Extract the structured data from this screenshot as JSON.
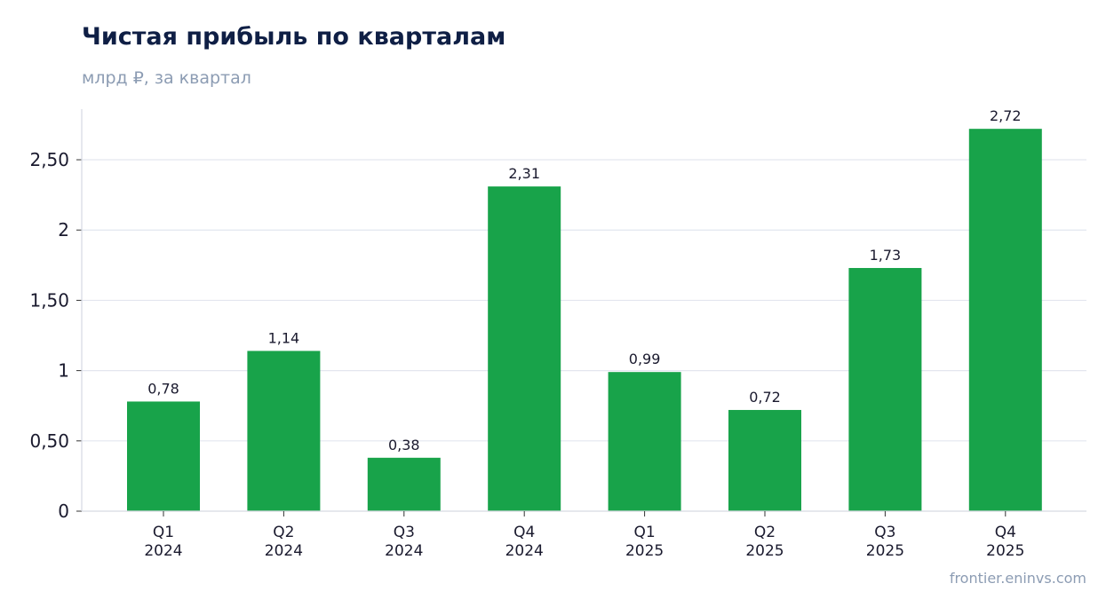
{
  "chart_data": {
    "type": "bar",
    "title": "Чистая прибыль по кварталам",
    "subtitle": "млрд ₽, за квартал",
    "categories": [
      [
        "Q1",
        "2024"
      ],
      [
        "Q2",
        "2024"
      ],
      [
        "Q3",
        "2024"
      ],
      [
        "Q4",
        "2024"
      ],
      [
        "Q1",
        "2025"
      ],
      [
        "Q2",
        "2025"
      ],
      [
        "Q3",
        "2025"
      ],
      [
        "Q4",
        "2025"
      ]
    ],
    "values": [
      0.78,
      1.14,
      0.38,
      2.31,
      0.99,
      0.72,
      1.73,
      2.72
    ],
    "value_labels": [
      "0,78",
      "1,14",
      "0,38",
      "2,31",
      "0,99",
      "0,72",
      "1,73",
      "2,72"
    ],
    "yticks": [
      0,
      0.5,
      1,
      1.5,
      2,
      2.5
    ],
    "ytick_labels": [
      "0",
      "0,50",
      "1",
      "1,50",
      "2",
      "2,50"
    ],
    "ylim": [
      0,
      2.86
    ],
    "grid": true,
    "bar_color": "#18a34a",
    "source": "frontier.eninvs.com"
  }
}
